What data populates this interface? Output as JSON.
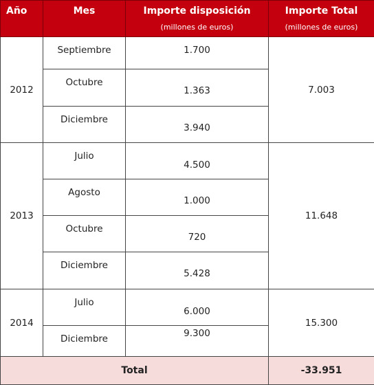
{
  "headers": {
    "anio": "Año",
    "mes": "Mes",
    "importe_disposicion": "Importe disposición",
    "importe_disposicion_unit": "(millones de euros)",
    "importe_total": "Importe Total",
    "importe_total_unit": "(millones de euros)"
  },
  "years": [
    {
      "year": "2012",
      "total": "7.003",
      "rows": [
        {
          "month": "Septiembre",
          "amount": "1.700"
        },
        {
          "month": "Octubre",
          "amount": "1.363"
        },
        {
          "month": "Diciembre",
          "amount": "3.940"
        }
      ]
    },
    {
      "year": "2013",
      "total": "11.648",
      "rows": [
        {
          "month": "Julio",
          "amount": "4.500"
        },
        {
          "month": "Agosto",
          "amount": "1.000"
        },
        {
          "month": "Octubre",
          "amount": "720"
        },
        {
          "month": "Diciembre",
          "amount": "5.428"
        }
      ]
    },
    {
      "year": "2014",
      "total": "15.300",
      "rows": [
        {
          "month": "Julio",
          "amount": "6.000"
        },
        {
          "month": "Diciembre",
          "amount": "9.300"
        }
      ]
    }
  ],
  "footer": {
    "label": "Total",
    "value": "-33.951"
  }
}
